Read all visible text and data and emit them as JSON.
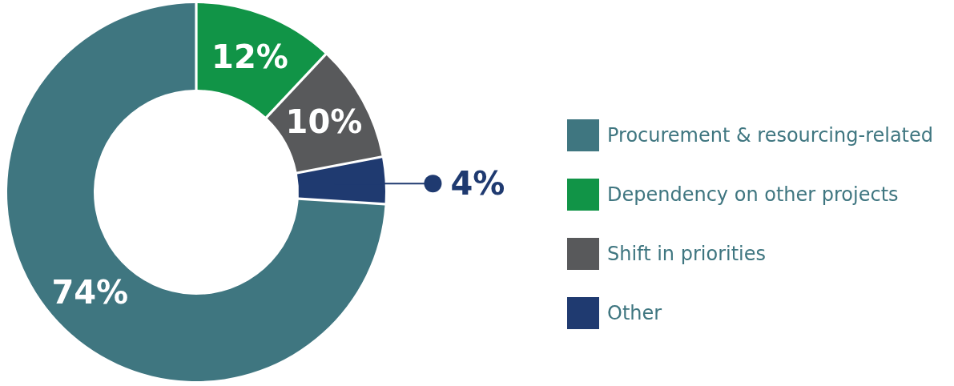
{
  "chart_data": {
    "type": "donut",
    "categories": [
      "Procurement & resourcing-related",
      "Dependency on other projects",
      "Shift in priorities",
      "Other"
    ],
    "values": [
      74,
      12,
      10,
      4
    ],
    "colors": [
      "#3f7680",
      "#119447",
      "#58595b",
      "#1f3a70"
    ],
    "value_labels": [
      "74%",
      "12%",
      "10%",
      "4%"
    ],
    "legend": "right"
  }
}
